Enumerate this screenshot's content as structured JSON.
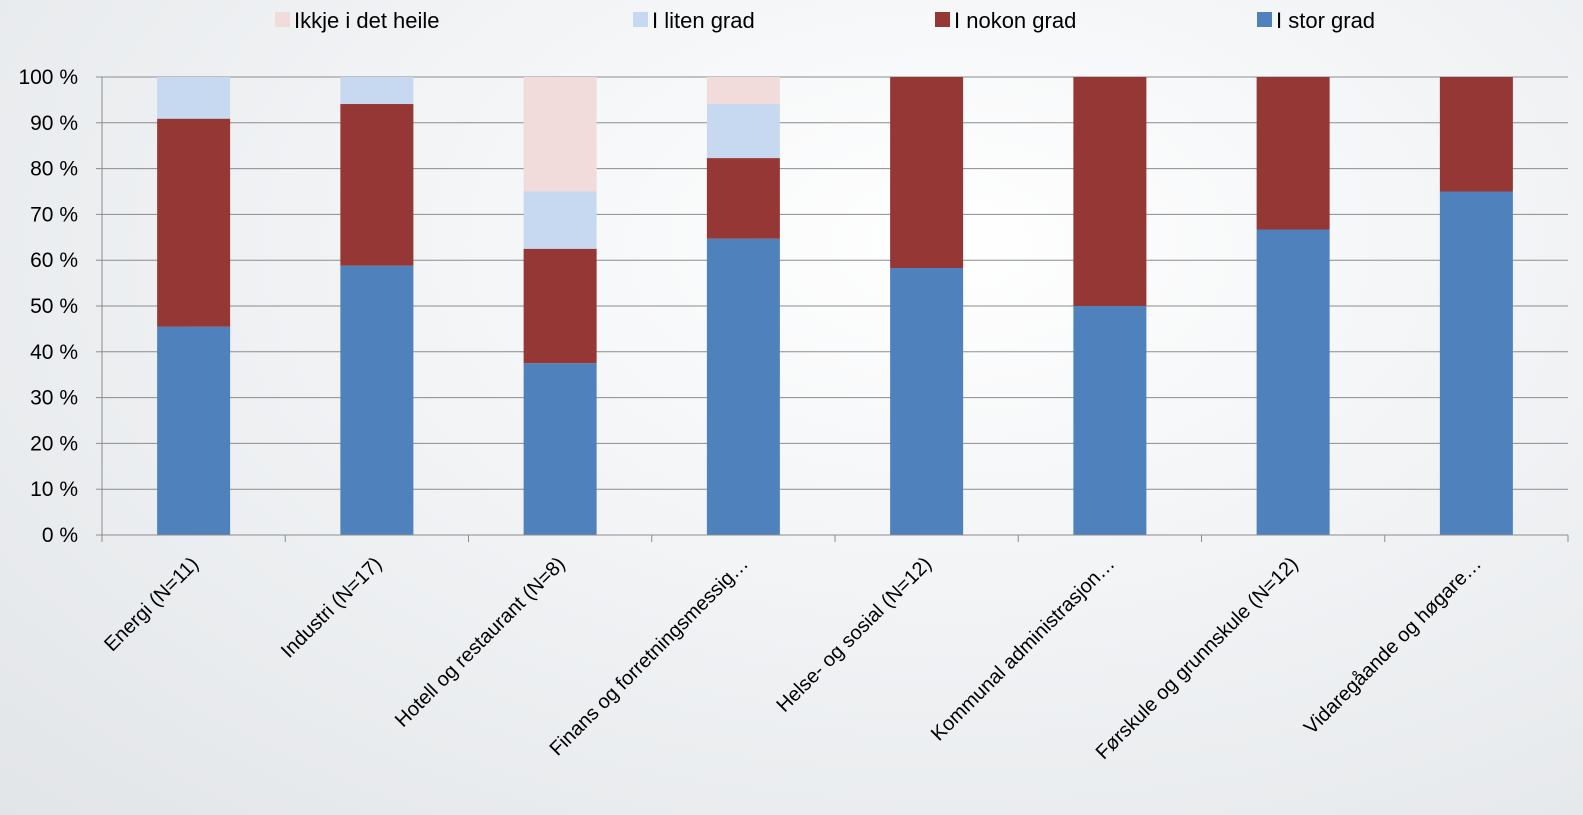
{
  "chart_data": {
    "type": "bar",
    "stacked": true,
    "title": "",
    "xlabel": "",
    "ylabel": "",
    "ylim": [
      0,
      100
    ],
    "yticks": [
      "0 %",
      "10 %",
      "20 %",
      "30 %",
      "40 %",
      "50 %",
      "60 %",
      "70 %",
      "80 %",
      "90 %",
      "100 %"
    ],
    "grid": true,
    "legend_position": "top",
    "categories": [
      "Energi (N=11)",
      "Industri (N=17)",
      "Hotell og restaurant (N=8)",
      "Finans og forretningsmessig…",
      "Helse- og sosial (N=12)",
      "Kommunal administrasjon…",
      "Førskule og grunnskule (N=12)",
      "Vidaregåande og høgare…"
    ],
    "series": [
      {
        "name": "I stor grad",
        "color": "#4f81bd",
        "values": [
          45.5,
          58.8,
          37.5,
          64.7,
          58.3,
          50.0,
          66.7,
          75.0
        ]
      },
      {
        "name": "I nokon grad",
        "color": "#953735",
        "values": [
          45.4,
          35.3,
          25.0,
          17.6,
          41.7,
          50.0,
          33.3,
          25.0
        ]
      },
      {
        "name": "I liten grad",
        "color": "#c6d9f1",
        "values": [
          9.1,
          5.9,
          12.5,
          11.8,
          0,
          0,
          0,
          0
        ]
      },
      {
        "name": "Ikkje i det heile",
        "color": "#f2dcdb",
        "values": [
          0,
          0,
          25.0,
          5.9,
          0,
          0,
          0,
          0
        ]
      }
    ],
    "legend_order": [
      "Ikkje i det heile",
      "I liten grad",
      "I nokon grad",
      "I stor grad"
    ]
  }
}
